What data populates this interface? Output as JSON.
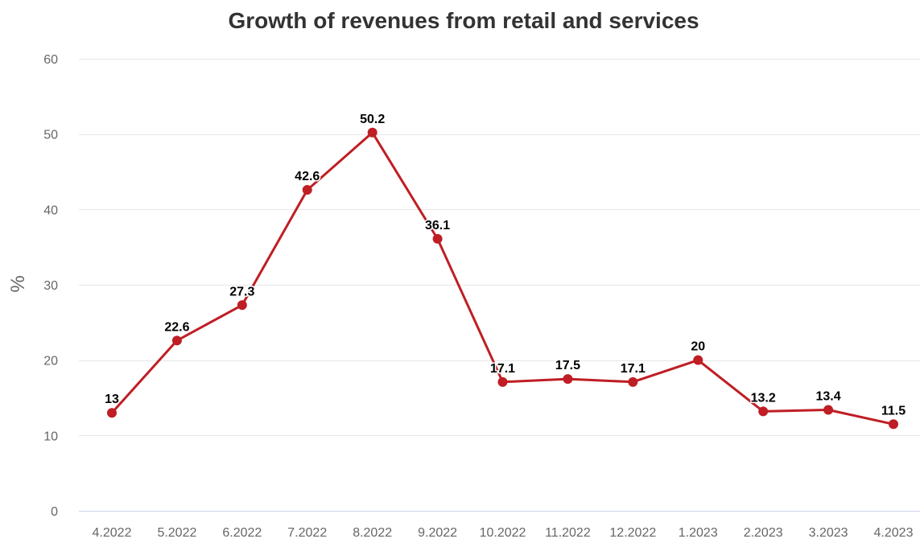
{
  "colors": {
    "line": "#bf1e24",
    "grid": "#e6e6e6",
    "baseline": "#ccd6eb"
  },
  "chart_data": {
    "type": "line",
    "title": "Growth of revenues from retail and services",
    "xlabel": "",
    "ylabel": "%",
    "ylim": [
      0,
      60
    ],
    "yticks": [
      0,
      10,
      20,
      30,
      40,
      50,
      60
    ],
    "grid": true,
    "categories": [
      "4.2022",
      "5.2022",
      "6.2022",
      "7.2022",
      "8.2022",
      "9.2022",
      "10.2022",
      "11.2022",
      "12.2022",
      "1.2023",
      "2.2023",
      "3.2023",
      "4.2023"
    ],
    "series": [
      {
        "values": [
          13,
          22.6,
          27.3,
          42.6,
          50.2,
          36.1,
          17.1,
          17.5,
          17.1,
          20,
          13.2,
          13.4,
          11.5
        ],
        "labels": [
          "13",
          "22.6",
          "27.3",
          "42.6",
          "50.2",
          "36.1",
          "17.1",
          "17.5",
          "17.1",
          "20",
          "13.2",
          "13.4",
          "11.5"
        ]
      }
    ]
  }
}
